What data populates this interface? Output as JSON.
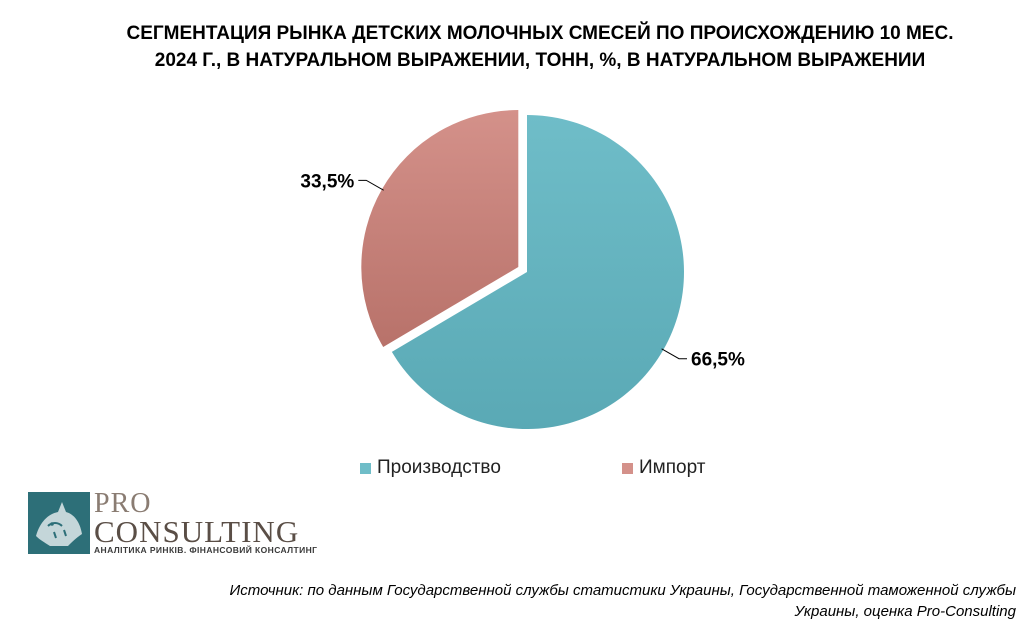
{
  "title_lines": [
    "СЕГМЕНТАЦИЯ РЫНКА ДЕТСКИХ МОЛОЧНЫХ СМЕСЕЙ ПО ПРОИСХОЖДЕНИЮ 10 МЕС.",
    "2024 Г., В НАТУРАЛЬНОМ ВЫРАЖЕНИИ, ТОНН, %, В НАТУРАЛЬНОМ ВЫРАЖЕНИИ"
  ],
  "chart_data": {
    "type": "pie",
    "title": "СЕГМЕНТАЦИЯ РЫНКА ДЕТСКИХ МОЛОЧНЫХ СМЕСЕЙ ПО ПРОИСХОЖДЕНИЮ 10 МЕС. 2024 Г., В НАТУРАЛЬНОМ ВЫРАЖЕНИИ, ТОНН, %, В НАТУРАЛЬНОМ ВЫРАЖЕНИИ",
    "unit": "%",
    "legend_position": "bottom",
    "slices": [
      {
        "label": "Производство",
        "value": 66.5,
        "display": "66,5%",
        "color": "#6fbdc8",
        "color_dark": "#5aa9b5"
      },
      {
        "label": "Импорт",
        "value": 33.5,
        "display": "33,5%",
        "color": "#d4918a",
        "color_dark": "#b8726a"
      }
    ]
  },
  "logo": {
    "line1": "PRO",
    "line2": "CONSULTING",
    "tagline": "АНАЛІТИКА РИНКІВ. ФІНАНСОВИЙ КОНСАЛТИНГ",
    "color": "#2d6f78"
  },
  "source_lines": [
    "Источник: по данным Государственной службы статистики Украины, Государственной таможенной службы",
    "Украины, оценка Pro-Consulting"
  ]
}
